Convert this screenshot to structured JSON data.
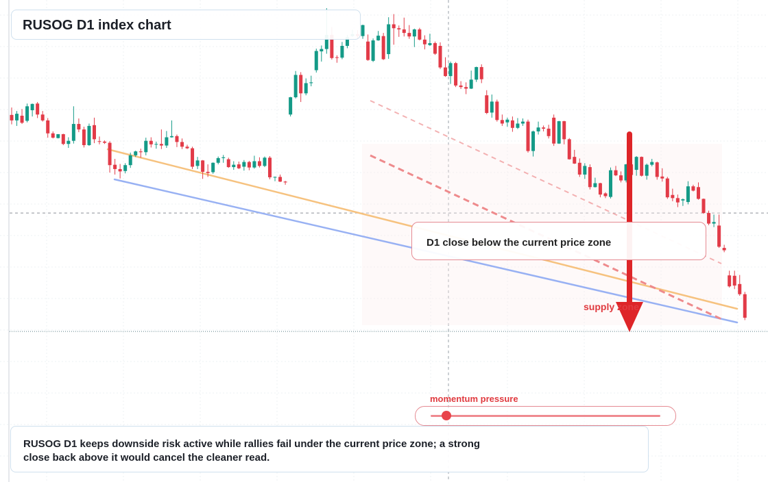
{
  "title": "RUSOG D1 index chart",
  "callout": "D1 close below the current price zone",
  "supply_label": "supply zone",
  "momentum": {
    "label": "momentum pressure",
    "value": 0.07
  },
  "summary": "RUSOG D1 keeps downside risk active while rallies fail under the current price zone; a strong close back above it would cancel the cleaner read.",
  "colors": {
    "up": "#149a87",
    "down": "#e23b48",
    "support": "#98b1f3",
    "resistance": "#f6c27f",
    "channel": "#ee8a8c",
    "arrow": "#de2528"
  },
  "chart_data": {
    "type": "candlestick",
    "title": "RUSOG D1 index chart",
    "x": {
      "start": 0,
      "end": 143
    },
    "ylim": [
      0,
      100
    ],
    "reference_lines": {
      "price_zone": 47.8,
      "lower_dotted": 17.6
    },
    "candles": [
      {
        "o": 72.8,
        "h": 74.7,
        "l": 70.4,
        "c": 71.4
      },
      {
        "o": 71.4,
        "h": 73.8,
        "l": 70.0,
        "c": 73.1
      },
      {
        "o": 72.6,
        "h": 74.3,
        "l": 70.5,
        "c": 70.8
      },
      {
        "o": 71.3,
        "h": 75.7,
        "l": 70.9,
        "c": 75.0
      },
      {
        "o": 74.0,
        "h": 75.7,
        "l": 72.4,
        "c": 75.6
      },
      {
        "o": 75.7,
        "h": 76.1,
        "l": 72.0,
        "c": 72.9
      },
      {
        "o": 72.9,
        "h": 73.8,
        "l": 71.1,
        "c": 71.4
      },
      {
        "o": 71.4,
        "h": 72.0,
        "l": 67.0,
        "c": 68.1
      },
      {
        "o": 68.1,
        "h": 68.6,
        "l": 66.8,
        "c": 67.0
      },
      {
        "o": 66.9,
        "h": 67.9,
        "l": 66.8,
        "c": 67.9
      },
      {
        "o": 67.9,
        "h": 68.0,
        "l": 65.1,
        "c": 65.4
      },
      {
        "o": 65.4,
        "h": 67.1,
        "l": 64.4,
        "c": 66.2
      },
      {
        "o": 66.2,
        "h": 75.0,
        "l": 65.5,
        "c": 70.5
      },
      {
        "o": 70.5,
        "h": 71.9,
        "l": 68.4,
        "c": 69.1
      },
      {
        "o": 69.1,
        "h": 69.8,
        "l": 64.5,
        "c": 65.1
      },
      {
        "o": 65.1,
        "h": 70.6,
        "l": 64.9,
        "c": 70.0
      },
      {
        "o": 70.2,
        "h": 72.1,
        "l": 65.6,
        "c": 66.6
      },
      {
        "o": 66.1,
        "h": 67.3,
        "l": 65.3,
        "c": 66.0
      },
      {
        "o": 66.0,
        "h": 66.3,
        "l": 65.4,
        "c": 65.7
      },
      {
        "o": 65.7,
        "h": 66.1,
        "l": 58.1,
        "c": 60.0
      },
      {
        "o": 60.1,
        "h": 61.6,
        "l": 57.6,
        "c": 59.0
      },
      {
        "o": 59.0,
        "h": 60.3,
        "l": 56.6,
        "c": 58.4
      },
      {
        "o": 58.5,
        "h": 60.5,
        "l": 57.9,
        "c": 60.0
      },
      {
        "o": 60.0,
        "h": 63.2,
        "l": 59.3,
        "c": 62.5
      },
      {
        "o": 62.5,
        "h": 63.7,
        "l": 62.1,
        "c": 63.5
      },
      {
        "o": 63.5,
        "h": 64.2,
        "l": 61.9,
        "c": 63.3
      },
      {
        "o": 63.3,
        "h": 67.0,
        "l": 62.5,
        "c": 66.2
      },
      {
        "o": 66.2,
        "h": 67.1,
        "l": 64.5,
        "c": 65.3
      },
      {
        "o": 65.3,
        "h": 66.0,
        "l": 64.2,
        "c": 65.4
      },
      {
        "o": 65.4,
        "h": 69.1,
        "l": 64.1,
        "c": 65.0
      },
      {
        "o": 65.0,
        "h": 68.7,
        "l": 64.4,
        "c": 67.1
      },
      {
        "o": 67.1,
        "h": 71.4,
        "l": 67.0,
        "c": 67.4
      },
      {
        "o": 67.4,
        "h": 67.8,
        "l": 64.6,
        "c": 65.9
      },
      {
        "o": 65.9,
        "h": 66.8,
        "l": 64.1,
        "c": 64.7
      },
      {
        "o": 64.7,
        "h": 65.2,
        "l": 64.1,
        "c": 64.3
      },
      {
        "o": 64.3,
        "h": 64.7,
        "l": 59.0,
        "c": 59.6
      },
      {
        "o": 59.8,
        "h": 62.1,
        "l": 59.0,
        "c": 61.2
      },
      {
        "o": 61.2,
        "h": 61.3,
        "l": 56.5,
        "c": 58.3
      },
      {
        "o": 58.3,
        "h": 60.2,
        "l": 57.0,
        "c": 58.0
      },
      {
        "o": 58.2,
        "h": 60.7,
        "l": 57.8,
        "c": 60.6
      },
      {
        "o": 60.6,
        "h": 62.2,
        "l": 60.2,
        "c": 61.8
      },
      {
        "o": 61.8,
        "h": 62.6,
        "l": 60.6,
        "c": 62.0
      },
      {
        "o": 61.5,
        "h": 61.9,
        "l": 59.3,
        "c": 59.5
      },
      {
        "o": 59.5,
        "h": 61.0,
        "l": 58.8,
        "c": 60.1
      },
      {
        "o": 60.2,
        "h": 60.9,
        "l": 59.0,
        "c": 59.2
      },
      {
        "o": 59.6,
        "h": 61.3,
        "l": 58.6,
        "c": 60.8
      },
      {
        "o": 60.8,
        "h": 61.1,
        "l": 58.7,
        "c": 59.4
      },
      {
        "o": 59.4,
        "h": 62.4,
        "l": 59.1,
        "c": 61.0
      },
      {
        "o": 61.0,
        "h": 62.0,
        "l": 59.4,
        "c": 59.8
      },
      {
        "o": 59.8,
        "h": 62.2,
        "l": 59.5,
        "c": 61.9
      },
      {
        "o": 61.9,
        "h": 62.3,
        "l": 56.4,
        "c": 56.9
      },
      {
        "o": 56.9,
        "h": 57.1,
        "l": 55.9,
        "c": 57.0
      },
      {
        "o": 57.0,
        "h": 57.6,
        "l": 55.7,
        "c": 55.8
      },
      {
        "o": 55.8,
        "h": 56.0,
        "l": 55.0,
        "c": 55.6
      },
      {
        "o": 72.9,
        "h": 77.4,
        "l": 72.4,
        "c": 77.3
      },
      {
        "o": 77.3,
        "h": 84.0,
        "l": 77.0,
        "c": 83.0
      },
      {
        "o": 83.0,
        "h": 83.7,
        "l": 76.1,
        "c": 78.3
      },
      {
        "o": 78.3,
        "h": 82.1,
        "l": 77.8,
        "c": 80.9
      },
      {
        "o": 80.9,
        "h": 82.8,
        "l": 80.1,
        "c": 81.1
      },
      {
        "o": 84.2,
        "h": 89.7,
        "l": 83.6,
        "c": 89.1
      },
      {
        "o": 89.0,
        "h": 90.5,
        "l": 86.4,
        "c": 89.6
      },
      {
        "o": 89.6,
        "h": 100,
        "l": 88.4,
        "c": 93.2
      },
      {
        "o": 93.2,
        "h": 95.2,
        "l": 86.9,
        "c": 87.3
      },
      {
        "o": 87.5,
        "h": 88.0,
        "l": 86.1,
        "c": 87.4
      },
      {
        "o": 87.4,
        "h": 91.4,
        "l": 87.0,
        "c": 90.4
      },
      {
        "o": 90.4,
        "h": 93.2,
        "l": 89.8,
        "c": 92.6
      },
      {
        "o": 92.9,
        "h": 94.5,
        "l": 92.7,
        "c": 93.4
      },
      {
        "o": 93.4,
        "h": 94.4,
        "l": 92.2,
        "c": 92.9
      },
      {
        "o": 92.9,
        "h": 95.8,
        "l": 92.2,
        "c": 95.7
      },
      {
        "o": 91.5,
        "h": 93.3,
        "l": 86.6,
        "c": 86.8
      },
      {
        "o": 86.6,
        "h": 92.3,
        "l": 86.3,
        "c": 91.8
      },
      {
        "o": 91.8,
        "h": 94.2,
        "l": 91.7,
        "c": 93.0
      },
      {
        "o": 92.9,
        "h": 93.7,
        "l": 86.8,
        "c": 87.0
      },
      {
        "o": 88.3,
        "h": 97.7,
        "l": 87.1,
        "c": 95.9
      },
      {
        "o": 95.9,
        "h": 98.5,
        "l": 90.7,
        "c": 94.9
      },
      {
        "o": 94.9,
        "h": 95.6,
        "l": 92.7,
        "c": 94.6
      },
      {
        "o": 94.6,
        "h": 97.6,
        "l": 92.8,
        "c": 93.7
      },
      {
        "o": 93.7,
        "h": 95.7,
        "l": 92.2,
        "c": 92.8
      },
      {
        "o": 92.8,
        "h": 94.8,
        "l": 90.1,
        "c": 94.6
      },
      {
        "o": 94.6,
        "h": 95.0,
        "l": 91.8,
        "c": 92.0
      },
      {
        "o": 92.0,
        "h": 93.1,
        "l": 89.5,
        "c": 90.8
      },
      {
        "o": 90.6,
        "h": 93.5,
        "l": 90.4,
        "c": 91.1
      },
      {
        "o": 91.1,
        "h": 91.5,
        "l": 88.1,
        "c": 88.4
      },
      {
        "o": 90.4,
        "h": 91.3,
        "l": 84.5,
        "c": 84.9
      },
      {
        "o": 84.9,
        "h": 87.5,
        "l": 82.5,
        "c": 82.7
      },
      {
        "o": 82.7,
        "h": 86.4,
        "l": 80.7,
        "c": 86.0
      },
      {
        "o": 86.0,
        "h": 86.3,
        "l": 79.9,
        "c": 80.3
      },
      {
        "o": 80.3,
        "h": 81.4,
        "l": 79.4,
        "c": 79.9
      },
      {
        "o": 79.9,
        "h": 81.1,
        "l": 78.1,
        "c": 79.5
      },
      {
        "o": 79.5,
        "h": 84.1,
        "l": 79.4,
        "c": 81.8
      },
      {
        "o": 81.8,
        "h": 85.1,
        "l": 81.2,
        "c": 85.0
      },
      {
        "o": 85.0,
        "h": 85.7,
        "l": 80.9,
        "c": 81.9
      },
      {
        "o": 77.8,
        "h": 79.1,
        "l": 73.0,
        "c": 73.3
      },
      {
        "o": 73.4,
        "h": 78.0,
        "l": 72.1,
        "c": 76.2
      },
      {
        "o": 76.2,
        "h": 76.7,
        "l": 71.1,
        "c": 71.5
      },
      {
        "o": 71.5,
        "h": 72.9,
        "l": 70.0,
        "c": 70.6
      },
      {
        "o": 70.9,
        "h": 72.1,
        "l": 69.8,
        "c": 71.6
      },
      {
        "o": 71.4,
        "h": 72.4,
        "l": 68.5,
        "c": 69.5
      },
      {
        "o": 69.5,
        "h": 72.0,
        "l": 69.2,
        "c": 70.6
      },
      {
        "o": 70.6,
        "h": 71.9,
        "l": 70.0,
        "c": 71.1
      },
      {
        "o": 71.1,
        "h": 71.6,
        "l": 63.2,
        "c": 63.6
      },
      {
        "o": 63.6,
        "h": 68.8,
        "l": 62.2,
        "c": 68.6
      },
      {
        "o": 68.6,
        "h": 71.1,
        "l": 67.8,
        "c": 69.6
      },
      {
        "o": 69.6,
        "h": 70.1,
        "l": 68.6,
        "c": 69.3
      },
      {
        "o": 69.3,
        "h": 70.3,
        "l": 66.8,
        "c": 67.4
      },
      {
        "o": 72.1,
        "h": 72.9,
        "l": 64.9,
        "c": 65.5
      },
      {
        "o": 65.5,
        "h": 71.3,
        "l": 65.4,
        "c": 71.2
      },
      {
        "o": 71.2,
        "h": 71.3,
        "l": 65.3,
        "c": 66.6
      },
      {
        "o": 66.6,
        "h": 66.9,
        "l": 61.4,
        "c": 61.5
      },
      {
        "o": 62.1,
        "h": 63.9,
        "l": 60.3,
        "c": 60.4
      },
      {
        "o": 60.6,
        "h": 61.7,
        "l": 57.0,
        "c": 57.6
      },
      {
        "o": 57.6,
        "h": 60.5,
        "l": 56.5,
        "c": 59.8
      },
      {
        "o": 59.5,
        "h": 60.2,
        "l": 53.8,
        "c": 54.4
      },
      {
        "o": 54.4,
        "h": 56.8,
        "l": 54.3,
        "c": 55.4
      },
      {
        "o": 55.4,
        "h": 55.5,
        "l": 51.8,
        "c": 52.5
      },
      {
        "o": 52.8,
        "h": 53.1,
        "l": 51.6,
        "c": 52.1
      },
      {
        "o": 51.9,
        "h": 59.4,
        "l": 51.5,
        "c": 58.7
      },
      {
        "o": 58.7,
        "h": 59.8,
        "l": 57.2,
        "c": 57.4
      },
      {
        "o": 57.4,
        "h": 58.4,
        "l": 55.6,
        "c": 56.1
      },
      {
        "o": 56.1,
        "h": 60.3,
        "l": 55.6,
        "c": 60.2
      },
      {
        "o": 60.2,
        "h": 60.5,
        "l": 56.1,
        "c": 57.5
      },
      {
        "o": 58.8,
        "h": 62.3,
        "l": 57.3,
        "c": 62.1
      },
      {
        "o": 62.1,
        "h": 62.2,
        "l": 57.1,
        "c": 57.3
      },
      {
        "o": 57.3,
        "h": 60.4,
        "l": 56.3,
        "c": 60.1
      },
      {
        "o": 60.1,
        "h": 61.6,
        "l": 59.7,
        "c": 60.8
      },
      {
        "o": 60.7,
        "h": 60.9,
        "l": 56.3,
        "c": 57.0
      },
      {
        "o": 57.1,
        "h": 59.2,
        "l": 55.8,
        "c": 56.6
      },
      {
        "o": 56.6,
        "h": 57.0,
        "l": 51.4,
        "c": 51.8
      },
      {
        "o": 52.4,
        "h": 54.0,
        "l": 50.8,
        "c": 51.6
      },
      {
        "o": 51.6,
        "h": 52.5,
        "l": 49.3,
        "c": 50.5
      },
      {
        "o": 51.0,
        "h": 51.5,
        "l": 49.6,
        "c": 51.3
      },
      {
        "o": 50.6,
        "h": 55.9,
        "l": 50.0,
        "c": 54.6
      },
      {
        "o": 54.6,
        "h": 55.0,
        "l": 53.3,
        "c": 53.5
      },
      {
        "o": 54.4,
        "h": 55.6,
        "l": 51.2,
        "c": 51.4
      },
      {
        "o": 51.4,
        "h": 51.5,
        "l": 47.6,
        "c": 47.8
      },
      {
        "o": 47.8,
        "h": 48.4,
        "l": 44.7,
        "c": 45.1
      },
      {
        "o": 45.1,
        "h": 47.4,
        "l": 44.2,
        "c": 45.5
      },
      {
        "o": 44.6,
        "h": 47.4,
        "l": 38.9,
        "c": 39.2
      },
      {
        "o": 38.9,
        "h": 39.7,
        "l": 37.8,
        "c": 38.3
      },
      {
        "o": 31.9,
        "h": 33.1,
        "l": 28.8,
        "c": 29.1
      },
      {
        "o": 31.8,
        "h": 33.1,
        "l": 28.4,
        "c": 29.3
      },
      {
        "o": 29.7,
        "h": 32.0,
        "l": 26.7,
        "c": 27.1
      },
      {
        "o": 27.1,
        "h": 27.7,
        "l": 20.5,
        "c": 21.1
      }
    ],
    "annotations": [
      "D1 close below the current price zone",
      "supply zone",
      "momentum pressure"
    ]
  }
}
